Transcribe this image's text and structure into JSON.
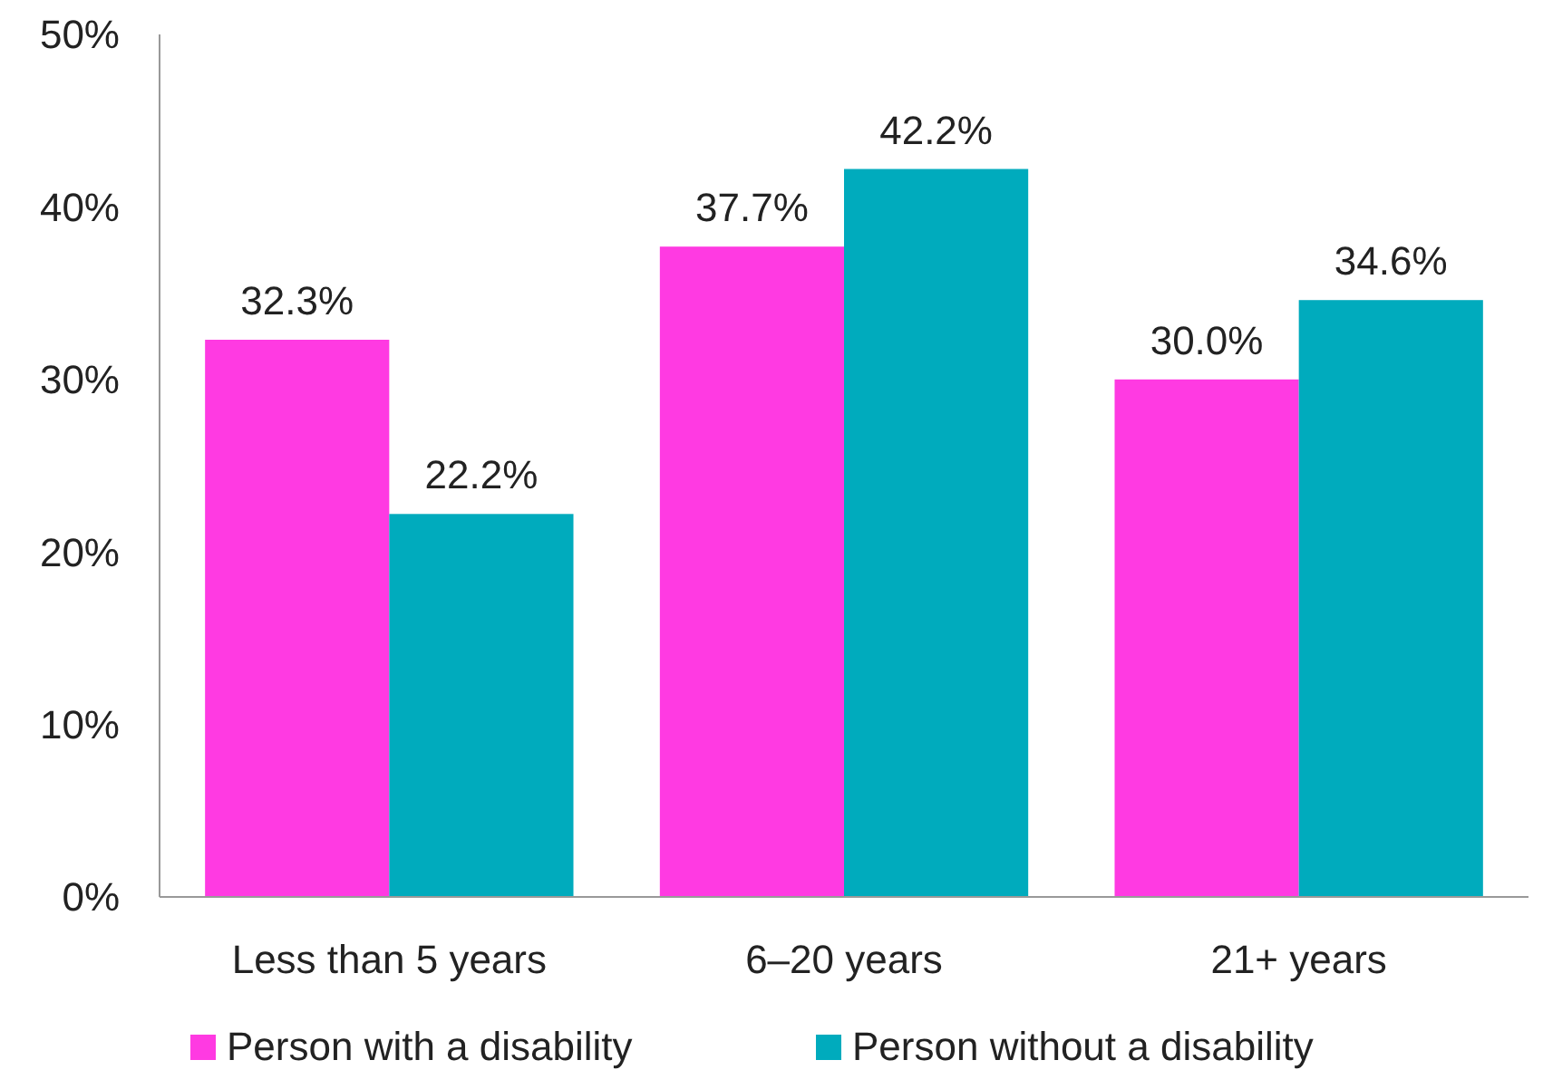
{
  "chart_data": {
    "type": "bar",
    "categories": [
      "Less than 5 years",
      "6–20 years",
      "21+ years"
    ],
    "series": [
      {
        "name": "Person with a disability",
        "color": "#ff3ae2",
        "values": [
          32.3,
          37.7,
          30.0
        ],
        "value_labels": [
          "32.3%",
          "37.7%",
          "30.0%"
        ]
      },
      {
        "name": "Person without a disability",
        "color": "#00abbd",
        "values": [
          22.2,
          42.2,
          34.6
        ],
        "value_labels": [
          "22.2%",
          "42.2%",
          "34.6%"
        ]
      }
    ],
    "ylim": [
      0,
      50
    ],
    "yticks": [
      {
        "value": 0,
        "label": "0%"
      },
      {
        "value": 10,
        "label": "10%"
      },
      {
        "value": 20,
        "label": "20%"
      },
      {
        "value": 30,
        "label": "30%"
      },
      {
        "value": 40,
        "label": "40%"
      },
      {
        "value": 50,
        "label": "50%"
      }
    ],
    "grid": false,
    "legend": "bottom"
  }
}
